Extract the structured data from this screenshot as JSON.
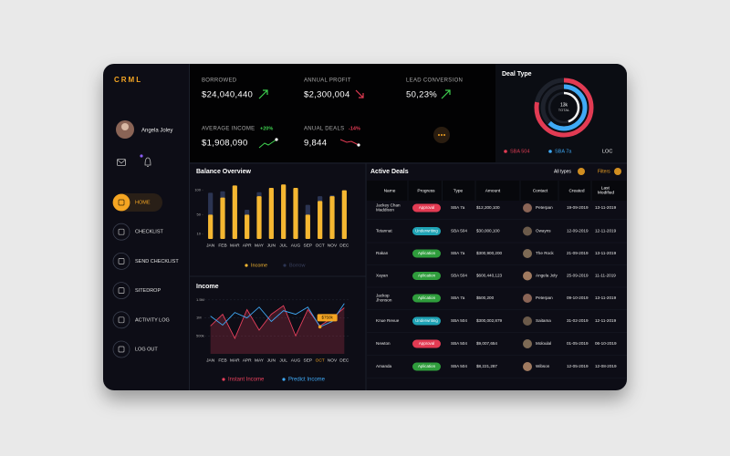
{
  "sidebar": {
    "logo": "CRML",
    "user": "Angela Joley",
    "menu": [
      "HOME",
      "CHECKLIST",
      "SEND CHECKLIST",
      "SITEDROP",
      "ACTIVITY LOG",
      "LOG OUT"
    ],
    "active": "HOME"
  },
  "stats": [
    {
      "label": "BORROWED",
      "value": "$24,040,440"
    },
    {
      "label": "ANNUAL PROFIT",
      "value": "$2,300,004"
    },
    {
      "label": "LEAD CONVERSION",
      "value": "50,23%"
    },
    {
      "label": "AVERAGE INCOME",
      "value": "$1,908,090",
      "change": "+20%"
    },
    {
      "label": "ANUAL DEALS",
      "value": "9,844",
      "change": "-14%"
    }
  ],
  "deal_type": {
    "title": "Deal Type",
    "center_value": "13k",
    "center_label": "TOTAL",
    "series": [
      {
        "name": "SBA 504",
        "color": "#e23b53",
        "value": 78
      },
      {
        "name": "SBA 7a",
        "color": "#3fa9f5",
        "value": 62
      },
      {
        "name": "LOC",
        "color": "#f2f2f2",
        "value": 45
      }
    ]
  },
  "balance_overview": {
    "type": "bar",
    "title": "Balance Overview",
    "categories": [
      "JAN",
      "FEB",
      "MAR",
      "APR",
      "MAY",
      "JUN",
      "JUL",
      "AUG",
      "SEP",
      "OCT",
      "NOV",
      "DEC"
    ],
    "series": [
      {
        "name": "Income",
        "color": "#f5b731",
        "values": [
          50,
          85,
          110,
          50,
          88,
          105,
          112,
          105,
          50,
          78,
          88,
          100
        ]
      },
      {
        "name": "Borrow",
        "color": "#2b3452",
        "values": [
          95,
          98,
          90,
          60,
          96,
          85,
          110,
          100,
          70,
          88,
          90,
          92
        ]
      }
    ],
    "ylim": [
      0,
      120
    ],
    "yticks": [
      10,
      50,
      100
    ]
  },
  "income": {
    "type": "line",
    "title": "Income",
    "categories": [
      "JAN",
      "FEB",
      "MAR",
      "APR",
      "MAY",
      "JUN",
      "JUL",
      "AUG",
      "SEP",
      "OCT",
      "NOV",
      "DEC"
    ],
    "series": [
      {
        "name": "Instant Income",
        "color": "#e8405c",
        "values": [
          775000,
          1100000,
          430000,
          1230000,
          660000,
          1100000,
          1340000,
          500000,
          1230000,
          775000,
          1000000,
          1280000
        ]
      },
      {
        "name": "Predict Income",
        "color": "#3fa9f5",
        "values": [
          1050000,
          800000,
          1150000,
          1000000,
          1300000,
          900000,
          1200000,
          1100000,
          1300000,
          750000,
          900000,
          1400000
        ]
      }
    ],
    "ylim": [
      0,
      1800000
    ],
    "yticks": [
      {
        "value": 500000,
        "label": "500k"
      },
      {
        "value": 1000000,
        "label": "1M"
      },
      {
        "value": 1500000,
        "label": "1.5M"
      }
    ],
    "annotation": {
      "text": "$750k",
      "category": "OCT"
    }
  },
  "active_deals": {
    "title": "Active Deals",
    "buttons": [
      "All types",
      "Filters"
    ],
    "columns": [
      "Name",
      "Progress",
      "Type",
      "Amount",
      "Contact",
      "Created",
      "Last Modified"
    ],
    "status_colors": {
      "Approval": "#e23b53",
      "Underwriting": "#1fa3b5",
      "Aplication": "#2f9d3c"
    },
    "rows": [
      [
        "Jackey Chan Maddison",
        "Approval",
        "SBA 7a",
        "$12,200,100",
        "Peterpan",
        "19-09-2019",
        "13-11-2019"
      ],
      [
        "Tetannat",
        "Underwriting",
        "SBA 504",
        "$30,000,100",
        "Owayns",
        "12-09-2019",
        "12-11-2019"
      ],
      [
        "Rakan",
        "Aplication",
        "SBA 7a",
        "$300,900,200",
        "The Rock",
        "21-09-2019",
        "13-11-2019"
      ],
      [
        "Xayan",
        "Aplication",
        "SBA 504",
        "$600,440,123",
        "Angela Joly",
        "25-09-2019",
        "11-11-2019"
      ],
      [
        "Jackop Jhonson",
        "Aplication",
        "SBA 7a",
        "$500,200",
        "Peterpan",
        "09-10-2019",
        "13-11-2019"
      ],
      [
        "Knue Revue",
        "Underwriting",
        "SBA 504",
        "$300,002,879",
        "Saitama",
        "31-02-2019",
        "12-11-2019"
      ],
      [
        "Newton",
        "Approval",
        "SBA 504",
        "$9,007,654",
        "Moloulal",
        "01-05-2019",
        "06-10-2019"
      ],
      [
        "Amanda",
        "Aplication",
        "SBA 504",
        "$8,221,287",
        "Wibson",
        "12-05-2019",
        "12-08-2019"
      ]
    ]
  }
}
